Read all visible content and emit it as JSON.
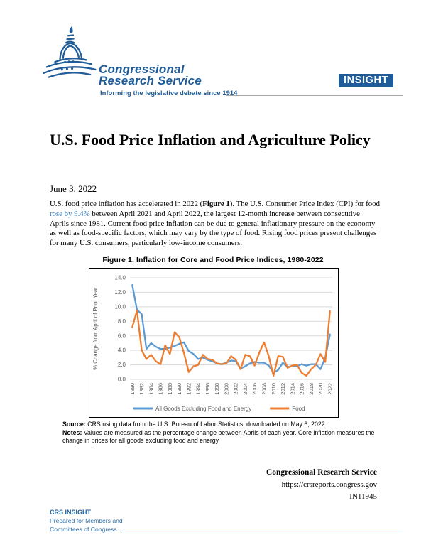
{
  "colors": {
    "brand_blue": "#1F5C99",
    "link_blue": "#2E74B5",
    "chart_core_blue": "#5B9BD5",
    "chart_food_orange": "#ED7D31",
    "gridline_gray": "#D9D9D9",
    "axis_text_gray": "#595959"
  },
  "brand": {
    "name_line1": "Congressional",
    "name_line2": "Research Service",
    "tagline": "Informing the legislative debate since 1914",
    "badge_label": "INSIGHT"
  },
  "doc": {
    "title": "U.S. Food Price Inflation and Agriculture Policy",
    "date": "June 3, 2022",
    "paragraph": {
      "seg1": "U.S. food price inflation has accelerated in 2022 (",
      "fig_ref": "Figure 1",
      "seg2": "). The U.S. Consumer Price Index (CPI) for food ",
      "link_text": "rose by 9.4%",
      "seg3": " between April 2021 and April 2022, the largest 12-month increase between consecutive Aprils since 1981. Current food price inflation can be due to general inflationary pressure on the economy as well as food-specific factors, which may vary by the type of food. Rising food prices present challenges for many U.S. consumers, particularly low-income consumers."
    }
  },
  "figure": {
    "title": "Figure 1. Inflation for Core and Food Price Indices, 1980-2022",
    "source_label": "Source:",
    "source_text": " CRS using data from the U.S. Bureau of Labor Statistics, downloaded on May 6, 2022.",
    "notes_label": "Notes:",
    "notes_text": " Values are measured as the percentage change between Aprils of each year. Core inflation measures the change in prices for all goods excluding food and energy."
  },
  "chart_data": {
    "type": "line",
    "title": "Figure 1. Inflation for Core and Food Price Indices, 1980-2022",
    "xlabel": "",
    "ylabel": "% Change from April of Prior Year",
    "ylim": [
      0,
      14
    ],
    "ytick_step": 2,
    "xtick_step": 2,
    "grid": true,
    "legend_position": "bottom",
    "x": [
      1980,
      1981,
      1982,
      1983,
      1984,
      1985,
      1986,
      1987,
      1988,
      1989,
      1990,
      1991,
      1992,
      1993,
      1994,
      1995,
      1996,
      1997,
      1998,
      1999,
      2000,
      2001,
      2002,
      2003,
      2004,
      2005,
      2006,
      2007,
      2008,
      2009,
      2010,
      2011,
      2012,
      2013,
      2014,
      2015,
      2016,
      2017,
      2018,
      2019,
      2020,
      2021,
      2022
    ],
    "series": [
      {
        "name": "All Goods Excluding Food and Energy",
        "color": "#5B9BD5",
        "values": [
          13.0,
          9.6,
          9.0,
          4.2,
          5.0,
          4.5,
          4.2,
          4.2,
          4.4,
          4.6,
          4.9,
          5.1,
          3.9,
          3.5,
          2.8,
          3.0,
          2.7,
          2.5,
          2.2,
          2.1,
          2.3,
          2.6,
          2.5,
          1.5,
          1.8,
          2.2,
          2.4,
          2.3,
          2.3,
          1.9,
          0.9,
          1.3,
          2.3,
          1.7,
          1.8,
          1.8,
          2.1,
          1.9,
          2.1,
          2.1,
          1.4,
          3.0,
          6.2
        ]
      },
      {
        "name": "Food",
        "color": "#ED7D31",
        "values": [
          7.2,
          9.5,
          4.0,
          2.8,
          3.4,
          2.5,
          2.1,
          4.7,
          3.5,
          6.5,
          5.8,
          3.6,
          1.0,
          1.8,
          2.0,
          3.4,
          2.8,
          2.7,
          2.2,
          2.1,
          2.2,
          3.2,
          2.7,
          1.4,
          3.4,
          3.2,
          1.9,
          3.7,
          5.1,
          3.2,
          0.5,
          3.2,
          3.1,
          1.6,
          1.9,
          2.0,
          0.9,
          0.5,
          1.4,
          2.0,
          3.5,
          2.4,
          9.4
        ]
      }
    ]
  },
  "footer": {
    "org": "Congressional Research Service",
    "url": "https://crsreports.congress.gov",
    "doc_number": "IN11945"
  },
  "bottom": {
    "product": "CRS INSIGHT",
    "line1": "Prepared for Members and",
    "line2": "Committees of Congress"
  }
}
